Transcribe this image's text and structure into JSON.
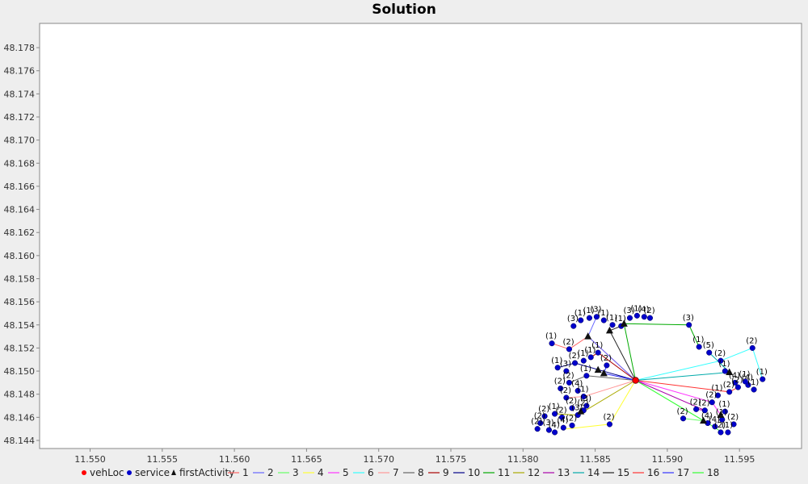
{
  "chart_data": {
    "type": "scatter",
    "title": "Solution",
    "xlabel": "",
    "ylabel": "",
    "xlim": [
      11.5465,
      11.5993
    ],
    "ylim": [
      48.1433,
      48.1801
    ],
    "x_ticks": [
      "11.550",
      "11.555",
      "11.560",
      "11.565",
      "11.570",
      "11.575",
      "11.580",
      "11.585",
      "11.590",
      "11.595"
    ],
    "y_ticks": [
      "48.144",
      "48.146",
      "48.148",
      "48.150",
      "48.152",
      "48.154",
      "48.156",
      "48.158",
      "48.160",
      "48.162",
      "48.164",
      "48.166",
      "48.168",
      "48.170",
      "48.172",
      "48.174",
      "48.176",
      "48.178"
    ],
    "grid": false,
    "legend_position": "bottom",
    "depot": {
      "x": 11.5878,
      "y": 48.1492
    },
    "legend": {
      "markers": [
        "vehLoc",
        "service",
        "firstActivity"
      ],
      "routes": [
        "1",
        "2",
        "3",
        "4",
        "5",
        "6",
        "7",
        "8",
        "9",
        "10",
        "11",
        "12",
        "13",
        "14",
        "15",
        "16",
        "17",
        "18"
      ]
    },
    "colors": {
      "vehLoc": "#ff0000",
      "service": "#0000cc",
      "firstActivity": "#111111",
      "routes": [
        "#ff6666",
        "#6666ff",
        "#66ff66",
        "#ffff33",
        "#ff33ff",
        "#33ffff",
        "#ff9999",
        "#666666",
        "#aa0000",
        "#000088",
        "#00aa00",
        "#aaaa00",
        "#aa00aa",
        "#00aaaa",
        "#222222",
        "#ff3333",
        "#3333ff",
        "#33ff33"
      ]
    },
    "services": [
      {
        "x": 11.582,
        "y": 48.1524,
        "label": "(1)"
      },
      {
        "x": 11.5835,
        "y": 48.1539,
        "label": "(3)"
      },
      {
        "x": 11.5832,
        "y": 48.1519,
        "label": "(2)"
      },
      {
        "x": 11.584,
        "y": 48.1544,
        "label": "(1)"
      },
      {
        "x": 11.5846,
        "y": 48.1546,
        "label": "(1)"
      },
      {
        "x": 11.5851,
        "y": 48.1547,
        "label": "(3)"
      },
      {
        "x": 11.5856,
        "y": 48.1544,
        "label": "(1)"
      },
      {
        "x": 11.5862,
        "y": 48.154,
        "label": "(1)"
      },
      {
        "x": 11.5868,
        "y": 48.1539,
        "label": "(1)"
      },
      {
        "x": 11.5874,
        "y": 48.1546,
        "label": "(3)"
      },
      {
        "x": 11.5879,
        "y": 48.1548,
        "label": "(1)"
      },
      {
        "x": 11.5884,
        "y": 48.1547,
        "label": "(4)"
      },
      {
        "x": 11.5888,
        "y": 48.1546,
        "label": "(2)"
      },
      {
        "x": 11.5915,
        "y": 48.154,
        "label": "(3)"
      },
      {
        "x": 11.5922,
        "y": 48.1521,
        "label": "(1)"
      },
      {
        "x": 11.5929,
        "y": 48.1516,
        "label": "(5)"
      },
      {
        "x": 11.5937,
        "y": 48.1509,
        "label": "(2)"
      },
      {
        "x": 11.5959,
        "y": 48.152,
        "label": "(2)"
      },
      {
        "x": 11.594,
        "y": 48.15,
        "label": "(1)"
      },
      {
        "x": 11.5966,
        "y": 48.1493,
        "label": "(1)"
      },
      {
        "x": 11.5956,
        "y": 48.1488,
        "label": "(4)"
      },
      {
        "x": 11.5949,
        "y": 48.1486,
        "label": "(2)"
      },
      {
        "x": 11.5947,
        "y": 48.149,
        "label": "(4)"
      },
      {
        "x": 11.5954,
        "y": 48.1491,
        "label": "(1)"
      },
      {
        "x": 11.596,
        "y": 48.1484,
        "label": "(1)"
      },
      {
        "x": 11.5943,
        "y": 48.1482,
        "label": "(2)"
      },
      {
        "x": 11.5935,
        "y": 48.1479,
        "label": "(1)"
      },
      {
        "x": 11.5931,
        "y": 48.1473,
        "label": "(2)"
      },
      {
        "x": 11.5926,
        "y": 48.1466,
        "label": "(2)"
      },
      {
        "x": 11.592,
        "y": 48.1467,
        "label": "(2)"
      },
      {
        "x": 11.594,
        "y": 48.1465,
        "label": "(1)"
      },
      {
        "x": 11.5938,
        "y": 48.1458,
        "label": "(1)"
      },
      {
        "x": 11.5933,
        "y": 48.1452,
        "label": "(4)"
      },
      {
        "x": 11.5937,
        "y": 48.1447,
        "label": "(2)"
      },
      {
        "x": 11.5942,
        "y": 48.1447,
        "label": "(1)"
      },
      {
        "x": 11.5946,
        "y": 48.1454,
        "label": "(2)"
      },
      {
        "x": 11.5928,
        "y": 48.1455,
        "label": "(4)"
      },
      {
        "x": 11.5911,
        "y": 48.1459,
        "label": "(2)"
      },
      {
        "x": 11.5824,
        "y": 48.1503,
        "label": "(1)"
      },
      {
        "x": 11.583,
        "y": 48.15,
        "label": "(3)"
      },
      {
        "x": 11.5836,
        "y": 48.1507,
        "label": "(2)"
      },
      {
        "x": 11.5842,
        "y": 48.1509,
        "label": "(1)"
      },
      {
        "x": 11.5847,
        "y": 48.1512,
        "label": "(1)"
      },
      {
        "x": 11.5852,
        "y": 48.1516,
        "label": "(1)"
      },
      {
        "x": 11.5858,
        "y": 48.1505,
        "label": "(2)"
      },
      {
        "x": 11.5844,
        "y": 48.1496,
        "label": "(1)"
      },
      {
        "x": 11.5832,
        "y": 48.149,
        "label": "(2)"
      },
      {
        "x": 11.5826,
        "y": 48.1485,
        "label": "(2)"
      },
      {
        "x": 11.5838,
        "y": 48.1483,
        "label": "(4)"
      },
      {
        "x": 11.5842,
        "y": 48.1478,
        "label": "(1)"
      },
      {
        "x": 11.583,
        "y": 48.1477,
        "label": "(2)"
      },
      {
        "x": 11.5834,
        "y": 48.1468,
        "label": "(2)"
      },
      {
        "x": 11.5838,
        "y": 48.1462,
        "label": "(3)"
      },
      {
        "x": 11.5842,
        "y": 48.1466,
        "label": "(2)"
      },
      {
        "x": 11.5844,
        "y": 48.147,
        "label": "(3)"
      },
      {
        "x": 11.5815,
        "y": 48.1461,
        "label": "(2)"
      },
      {
        "x": 11.5822,
        "y": 48.1463,
        "label": "(1)"
      },
      {
        "x": 11.5827,
        "y": 48.146,
        "label": "(2)"
      },
      {
        "x": 11.5812,
        "y": 48.1455,
        "label": "(2)"
      },
      {
        "x": 11.581,
        "y": 48.145,
        "label": "(2)"
      },
      {
        "x": 11.5818,
        "y": 48.1449,
        "label": "(3)"
      },
      {
        "x": 11.5822,
        "y": 48.1447,
        "label": "(4)"
      },
      {
        "x": 11.5828,
        "y": 48.1451,
        "label": "(4)"
      },
      {
        "x": 11.5834,
        "y": 48.1453,
        "label": "(2)"
      },
      {
        "x": 11.586,
        "y": 48.1454,
        "label": "(2)"
      }
    ],
    "first_activities": [
      {
        "x": 11.584,
        "y": 48.1465
      },
      {
        "x": 11.5845,
        "y": 48.153
      },
      {
        "x": 11.5852,
        "y": 48.1501
      },
      {
        "x": 11.5856,
        "y": 48.1498
      },
      {
        "x": 11.586,
        "y": 48.1535
      },
      {
        "x": 11.587,
        "y": 48.1541
      },
      {
        "x": 11.5925,
        "y": 48.1457
      },
      {
        "x": 11.5937,
        "y": 48.1462
      },
      {
        "x": 11.5943,
        "y": 48.1499
      }
    ],
    "routes": [
      {
        "name": "1",
        "points": [
          [
            11.5878,
            48.1492
          ],
          [
            11.5845,
            48.153
          ],
          [
            11.5832,
            48.1519
          ],
          [
            11.582,
            48.1524
          ]
        ]
      },
      {
        "name": "2",
        "points": [
          [
            11.5878,
            48.1492
          ],
          [
            11.5845,
            48.153
          ],
          [
            11.5851,
            48.1547
          ]
        ]
      },
      {
        "name": "3",
        "points": [
          [
            11.5878,
            48.1492
          ],
          [
            11.5925,
            48.1457
          ],
          [
            11.5911,
            48.1459
          ]
        ]
      },
      {
        "name": "4",
        "points": [
          [
            11.5878,
            48.1492
          ],
          [
            11.586,
            48.1454
          ],
          [
            11.583,
            48.145
          ]
        ]
      },
      {
        "name": "5",
        "points": [
          [
            11.5878,
            48.1492
          ],
          [
            11.5931,
            48.1473
          ],
          [
            11.5937,
            48.1462
          ]
        ]
      },
      {
        "name": "6",
        "points": [
          [
            11.5878,
            48.1492
          ],
          [
            11.5937,
            48.1509
          ],
          [
            11.5959,
            48.152
          ],
          [
            11.5966,
            48.1493
          ]
        ]
      },
      {
        "name": "7",
        "points": [
          [
            11.5878,
            48.1492
          ],
          [
            11.5842,
            48.1478
          ],
          [
            11.583,
            48.1477
          ]
        ]
      },
      {
        "name": "8",
        "points": [
          [
            11.5878,
            48.1492
          ],
          [
            11.5844,
            48.1496
          ],
          [
            11.5832,
            48.149
          ]
        ]
      },
      {
        "name": "9",
        "points": [
          [
            11.5878,
            48.1492
          ],
          [
            11.5852,
            48.1516
          ],
          [
            11.5847,
            48.1512
          ]
        ]
      },
      {
        "name": "10",
        "points": [
          [
            11.5878,
            48.1492
          ],
          [
            11.5836,
            48.1507
          ],
          [
            11.5824,
            48.1503
          ]
        ]
      },
      {
        "name": "11",
        "points": [
          [
            11.5878,
            48.1492
          ],
          [
            11.587,
            48.1541
          ],
          [
            11.5915,
            48.154
          ],
          [
            11.5922,
            48.1521
          ]
        ]
      },
      {
        "name": "12",
        "points": [
          [
            11.5878,
            48.1492
          ],
          [
            11.5838,
            48.1462
          ],
          [
            11.5822,
            48.1463
          ]
        ]
      },
      {
        "name": "13",
        "points": [
          [
            11.5878,
            48.1492
          ],
          [
            11.5926,
            48.1466
          ],
          [
            11.592,
            48.1467
          ]
        ]
      },
      {
        "name": "14",
        "points": [
          [
            11.5878,
            48.1492
          ],
          [
            11.5943,
            48.1499
          ],
          [
            11.5929,
            48.1516
          ]
        ]
      },
      {
        "name": "15",
        "points": [
          [
            11.5878,
            48.1492
          ],
          [
            11.586,
            48.1535
          ],
          [
            11.5868,
            48.1539
          ]
        ]
      },
      {
        "name": "16",
        "points": [
          [
            11.5878,
            48.1492
          ],
          [
            11.5943,
            48.1482
          ],
          [
            11.5949,
            48.1486
          ]
        ]
      },
      {
        "name": "17",
        "points": [
          [
            11.5878,
            48.1492
          ],
          [
            11.5856,
            48.1498
          ],
          [
            11.5858,
            48.1505
          ]
        ]
      },
      {
        "name": "18",
        "points": [
          [
            11.5878,
            48.1492
          ],
          [
            11.5928,
            48.1455
          ],
          [
            11.5938,
            48.1447
          ]
        ]
      }
    ]
  }
}
